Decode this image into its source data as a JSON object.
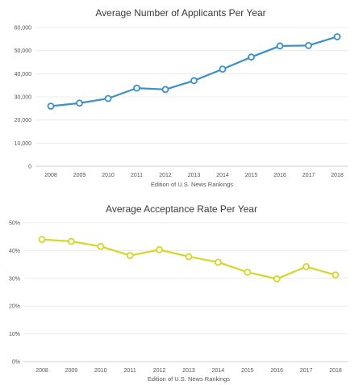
{
  "chart_data": [
    {
      "type": "line",
      "title": "Average Number of Applicants Per Year",
      "xlabel": "Edition of U.S. News Rankings",
      "ylabel": "",
      "categories": [
        "2008",
        "2009",
        "2010",
        "2011",
        "2012",
        "2013",
        "2014",
        "2015",
        "2016",
        "2017",
        "2018"
      ],
      "values": [
        26000,
        27300,
        29300,
        33800,
        33200,
        37000,
        42000,
        47200,
        52000,
        52200,
        56000
      ],
      "ylim": [
        0,
        60000
      ],
      "yticks": [
        0,
        10000,
        20000,
        30000,
        40000,
        50000,
        60000
      ],
      "ytick_labels": [
        "0",
        "10,000",
        "20,000",
        "30,000",
        "40,000",
        "50,000",
        "60,000"
      ],
      "grid": true,
      "color": "#3d8fc7"
    },
    {
      "type": "line",
      "title": "Average Acceptance Rate Per Year",
      "xlabel": "Edition of U.S. News Rankings",
      "ylabel": "",
      "categories": [
        "2008",
        "2009",
        "2010",
        "2011",
        "2012",
        "2013",
        "2014",
        "2015",
        "2016",
        "2017",
        "2018"
      ],
      "values": [
        44,
        43.3,
        41.5,
        38.2,
        40.3,
        37.8,
        35.8,
        32.2,
        29.8,
        34.2,
        31.2
      ],
      "ylim": [
        0,
        50
      ],
      "yticks": [
        0,
        10,
        20,
        30,
        40,
        50
      ],
      "ytick_labels": [
        "0%",
        "10%",
        "20%",
        "30%",
        "40%",
        "50%"
      ],
      "grid": true,
      "color": "#d6d628"
    }
  ]
}
